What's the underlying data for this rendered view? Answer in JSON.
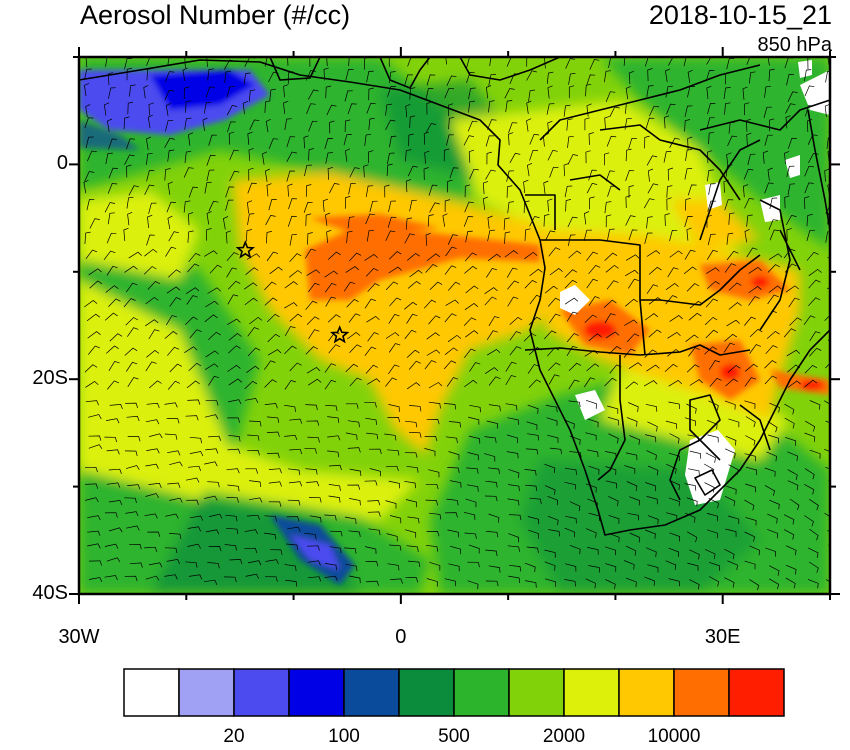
{
  "title": "Aerosol Number (#/cc)",
  "timestamp": "2018-10-15_21",
  "level": "850 hPa",
  "y_ticks": [
    {
      "label": "0",
      "lat": 0
    },
    {
      "label": "20S",
      "lat": -20
    },
    {
      "label": "40S",
      "lat": -40
    }
  ],
  "x_ticks": [
    {
      "label": "30W",
      "lon": -30
    },
    {
      "label": "0",
      "lon": 0
    },
    {
      "label": "30E",
      "lon": 30
    }
  ],
  "extent": {
    "lon_min": -30,
    "lon_max": 40,
    "lat_min": -40,
    "lat_max": 10
  },
  "colorbar": {
    "colors": [
      "#ffffff",
      "#a0a0f5",
      "#4b4bf0",
      "#0000e6",
      "#0a4b9b",
      "#0a8c3c",
      "#2db42d",
      "#82d20a",
      "#dcf00a",
      "#ffc800",
      "#ff6e00",
      "#ff1e00"
    ],
    "labels": [
      {
        "text": "20",
        "boundary": 2
      },
      {
        "text": "100",
        "boundary": 4
      },
      {
        "text": "500",
        "boundary": 6
      },
      {
        "text": "2000",
        "boundary": 8
      },
      {
        "text": "10000",
        "boundary": 10
      }
    ]
  },
  "markers": [
    {
      "name": "star-marker",
      "lon": -14.5,
      "lat": -8
    },
    {
      "name": "star-marker",
      "lon": -5.7,
      "lat": -15.9
    }
  ]
}
